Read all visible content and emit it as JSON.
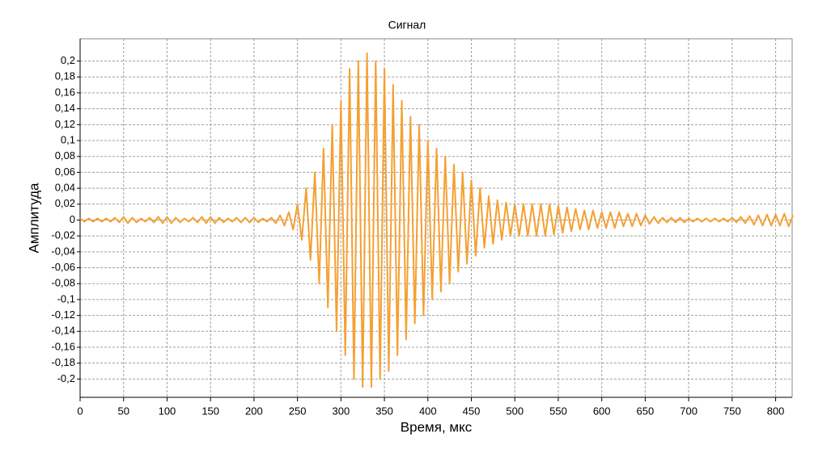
{
  "chart_data": {
    "type": "line",
    "title": "Сигнал",
    "x_label": "Время, мкс",
    "y_label": "Амплитуда",
    "x": [
      0,
      5,
      10,
      15,
      20,
      25,
      30,
      35,
      40,
      45,
      50,
      55,
      60,
      65,
      70,
      75,
      80,
      85,
      90,
      95,
      100,
      105,
      110,
      115,
      120,
      125,
      130,
      135,
      140,
      145,
      150,
      155,
      160,
      165,
      170,
      175,
      180,
      185,
      190,
      195,
      200,
      205,
      210,
      215,
      220,
      225,
      230,
      235,
      240,
      245,
      250,
      255,
      260,
      265,
      270,
      275,
      280,
      285,
      290,
      295,
      300,
      305,
      310,
      315,
      320,
      325,
      330,
      335,
      340,
      345,
      350,
      355,
      360,
      365,
      370,
      375,
      380,
      385,
      390,
      395,
      400,
      405,
      410,
      415,
      420,
      425,
      430,
      435,
      440,
      445,
      450,
      455,
      460,
      465,
      470,
      475,
      480,
      485,
      490,
      495,
      500,
      505,
      510,
      515,
      520,
      525,
      530,
      535,
      540,
      545,
      550,
      555,
      560,
      565,
      570,
      575,
      580,
      585,
      590,
      595,
      600,
      605,
      610,
      615,
      620,
      625,
      630,
      635,
      640,
      645,
      650,
      655,
      660,
      665,
      670,
      675,
      680,
      685,
      690,
      695,
      700,
      705,
      710,
      715,
      720,
      725,
      730,
      735,
      740,
      745,
      750,
      755,
      760,
      765,
      770,
      775,
      780,
      785,
      790,
      795,
      800,
      805,
      810,
      815,
      820
    ],
    "series": [
      {
        "name": "Сигнал",
        "color": "#f5a031",
        "values": [
          0.002,
          -0.002,
          0.002,
          -0.002,
          0.002,
          -0.002,
          0.002,
          -0.002,
          0.003,
          -0.003,
          0.004,
          -0.004,
          0.003,
          -0.003,
          0.002,
          -0.002,
          0.003,
          -0.003,
          0.004,
          -0.004,
          0.004,
          -0.004,
          0.003,
          -0.003,
          0.002,
          -0.002,
          0.003,
          -0.003,
          0.004,
          -0.004,
          0.004,
          -0.004,
          0.003,
          -0.003,
          0.002,
          -0.002,
          0.003,
          -0.003,
          0.003,
          -0.003,
          0.003,
          -0.003,
          0.002,
          -0.002,
          0.003,
          -0.004,
          0.006,
          -0.007,
          0.01,
          -0.012,
          0.02,
          -0.025,
          0.04,
          -0.05,
          0.06,
          -0.08,
          0.09,
          -0.11,
          0.12,
          -0.14,
          0.15,
          -0.17,
          0.19,
          -0.2,
          0.2,
          -0.21,
          0.21,
          -0.21,
          0.2,
          -0.2,
          0.19,
          -0.19,
          0.17,
          -0.17,
          0.15,
          -0.15,
          0.13,
          -0.13,
          0.12,
          -0.12,
          0.1,
          -0.1,
          0.09,
          -0.09,
          0.08,
          -0.08,
          0.07,
          -0.065,
          0.06,
          -0.055,
          0.05,
          -0.045,
          0.04,
          -0.035,
          0.03,
          -0.03,
          0.025,
          -0.025,
          0.022,
          -0.02,
          0.02,
          -0.02,
          0.02,
          -0.02,
          0.02,
          -0.02,
          0.02,
          -0.02,
          0.02,
          -0.018,
          0.018,
          -0.016,
          0.016,
          -0.014,
          0.014,
          -0.012,
          0.012,
          -0.012,
          0.012,
          -0.01,
          0.01,
          -0.01,
          0.01,
          -0.01,
          0.01,
          -0.008,
          0.008,
          -0.008,
          0.008,
          -0.007,
          0.006,
          -0.005,
          0.004,
          -0.004,
          0.003,
          -0.003,
          0.003,
          -0.003,
          0.003,
          -0.003,
          0.002,
          -0.002,
          0.002,
          -0.002,
          0.002,
          -0.002,
          0.002,
          -0.002,
          0.002,
          -0.002,
          0.003,
          -0.003,
          0.004,
          -0.004,
          0.005,
          -0.006,
          0.006,
          -0.007,
          0.007,
          -0.007,
          0.007,
          -0.007,
          0.008,
          -0.008,
          0.006
        ]
      }
    ],
    "xlim": [
      0,
      819
    ],
    "xticks": [
      0,
      50,
      100,
      150,
      200,
      250,
      300,
      350,
      400,
      450,
      500,
      550,
      600,
      650,
      700,
      750,
      800
    ],
    "ylim": [
      -0.223,
      0.228
    ],
    "yticks": [
      {
        "value": -0.2,
        "label": "-0,2"
      },
      {
        "value": -0.18,
        "label": "-0,18"
      },
      {
        "value": -0.16,
        "label": "-0,16"
      },
      {
        "value": -0.14,
        "label": "-0,14"
      },
      {
        "value": -0.12,
        "label": "-0,12"
      },
      {
        "value": -0.1,
        "label": "-0,1"
      },
      {
        "value": -0.08,
        "label": "-0,08"
      },
      {
        "value": -0.06,
        "label": "-0,06"
      },
      {
        "value": -0.04,
        "label": "-0,04"
      },
      {
        "value": -0.02,
        "label": "-0,02"
      },
      0,
      {
        "value": 0.02,
        "label": "0,02"
      },
      {
        "value": 0.04,
        "label": "0,04"
      },
      {
        "value": 0.06,
        "label": "0,06"
      },
      {
        "value": 0.08,
        "label": "0,08"
      },
      {
        "value": 0.1,
        "label": "0,1"
      },
      {
        "value": 0.12,
        "label": "0,12"
      },
      {
        "value": 0.14,
        "label": "0,14"
      },
      {
        "value": 0.16,
        "label": "0,16"
      },
      {
        "value": 0.18,
        "label": "0,18"
      },
      {
        "value": 0.2,
        "label": "0,2"
      }
    ],
    "grid": true
  }
}
